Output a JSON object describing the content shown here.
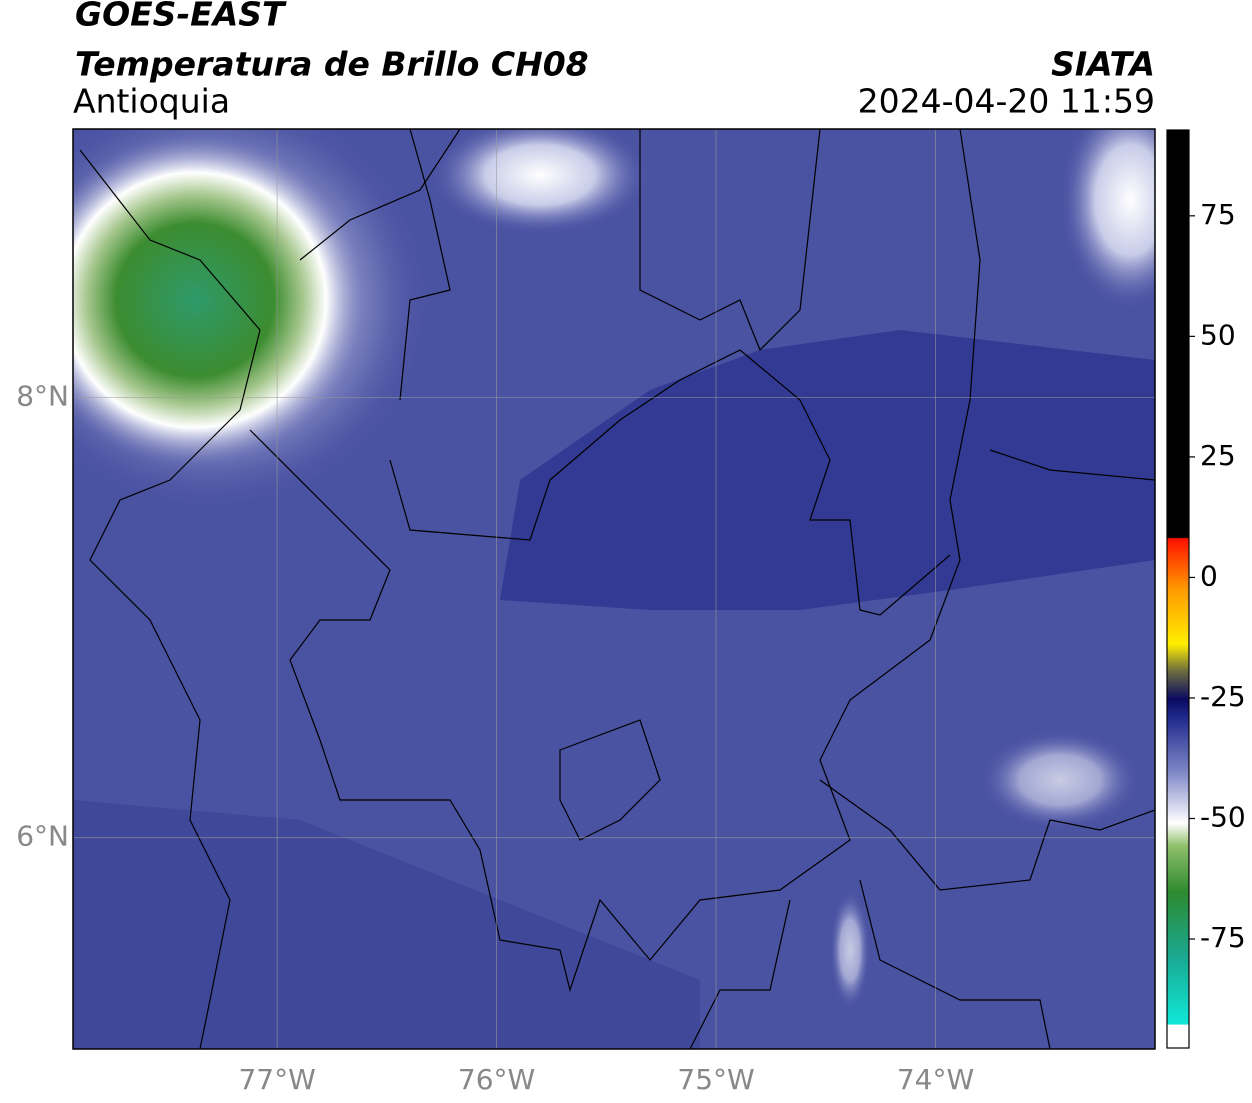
{
  "header": {
    "title": "GOES-EAST",
    "subtitle": "Temperatura de Brillo CH08",
    "region": "Antioquia",
    "source": "SIATA",
    "datetime": "2024-04-20 11:59"
  },
  "map": {
    "xlim": [
      -77.93,
      -73.0
    ],
    "ylim": [
      5.04,
      9.22
    ],
    "xticks": [
      {
        "value": -77,
        "label": "77°W"
      },
      {
        "value": -76,
        "label": "76°W"
      },
      {
        "value": -75,
        "label": "75°W"
      },
      {
        "value": -74,
        "label": "74°W"
      }
    ],
    "yticks": [
      {
        "value": 8,
        "label": "8°N"
      },
      {
        "value": 6,
        "label": "6°N"
      }
    ],
    "grid": true
  },
  "colorbar": {
    "lim": [
      -97.6,
      92.8
    ],
    "ticks": [
      75,
      50,
      25,
      0,
      -25,
      -50,
      -75
    ]
  }
}
